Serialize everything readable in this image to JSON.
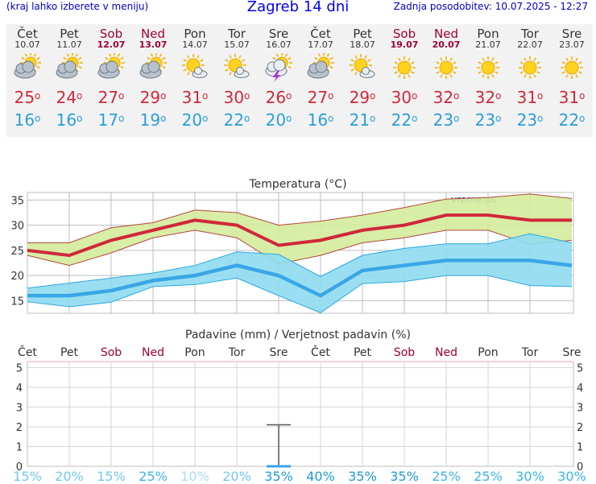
{
  "header": {
    "menu_hint": "(kraj lahko izberete v meniju)",
    "title": "Zagreb 14 dni",
    "updated": "Zadnja posodobitev: 10.07.2025 - 12:27"
  },
  "forecast": [
    {
      "day": "Čet",
      "date": "10.07",
      "weekend": false,
      "icon": "partly-cloudy-icon",
      "max": "25",
      "min": "16",
      "precip_prob": "15%"
    },
    {
      "day": "Pet",
      "date": "11.07",
      "weekend": false,
      "icon": "partly-cloudy-icon",
      "max": "24",
      "min": "16",
      "precip_prob": "20%"
    },
    {
      "day": "Sob",
      "date": "12.07",
      "weekend": true,
      "icon": "partly-cloudy-icon",
      "max": "27",
      "min": "17",
      "precip_prob": "15%"
    },
    {
      "day": "Ned",
      "date": "13.07",
      "weekend": true,
      "icon": "partly-cloudy-icon",
      "max": "29",
      "min": "19",
      "precip_prob": "25%"
    },
    {
      "day": "Pon",
      "date": "14.07",
      "weekend": false,
      "icon": "mostly-sunny-icon",
      "max": "31",
      "min": "20",
      "precip_prob": "10%"
    },
    {
      "day": "Tor",
      "date": "15.07",
      "weekend": false,
      "icon": "mostly-sunny-icon",
      "max": "30",
      "min": "22",
      "precip_prob": "20%"
    },
    {
      "day": "Sre",
      "date": "16.07",
      "weekend": false,
      "icon": "thunderstorm-icon",
      "max": "26",
      "min": "20",
      "precip_prob": "35%"
    },
    {
      "day": "Čet",
      "date": "17.07",
      "weekend": false,
      "icon": "partly-cloudy-icon",
      "max": "27",
      "min": "16",
      "precip_prob": "40%"
    },
    {
      "day": "Pet",
      "date": "18.07",
      "weekend": false,
      "icon": "mostly-sunny-icon",
      "max": "29",
      "min": "21",
      "precip_prob": "35%"
    },
    {
      "day": "Sob",
      "date": "19.07",
      "weekend": true,
      "icon": "sunny-icon",
      "max": "30",
      "min": "22",
      "precip_prob": "35%"
    },
    {
      "day": "Ned",
      "date": "20.07",
      "weekend": true,
      "icon": "sunny-icon",
      "max": "32",
      "min": "23",
      "precip_prob": "25%"
    },
    {
      "day": "Pon",
      "date": "21.07",
      "weekend": false,
      "icon": "sunny-icon",
      "max": "32",
      "min": "23",
      "precip_prob": "25%"
    },
    {
      "day": "Tor",
      "date": "22.07",
      "weekend": false,
      "icon": "sunny-icon",
      "max": "31",
      "min": "23",
      "precip_prob": "30%"
    },
    {
      "day": "Sre",
      "date": "23.07",
      "weekend": false,
      "icon": "sunny-icon",
      "max": "31",
      "min": "22",
      "precip_prob": "30%"
    }
  ],
  "colors": {
    "max": "#d0283a",
    "min": "#2b9ed6",
    "weekend": "#a00030",
    "max_band": "#d4ec9c",
    "min_band": "#8fdbef",
    "grid": "#bdbdbd"
  },
  "chart_data": [
    {
      "type": "line",
      "title": "Temperatura (°C)",
      "watermark": "vreme.us",
      "ylim": [
        12.5,
        36.5
      ],
      "yticks": [
        15,
        20,
        25,
        30,
        35
      ],
      "grid": true,
      "series": [
        {
          "name": "max",
          "values": [
            25,
            24,
            27,
            29,
            31,
            30,
            26,
            27,
            29,
            30,
            32,
            32,
            31,
            31
          ]
        },
        {
          "name": "max_band_high",
          "values": [
            26.5,
            26.5,
            29.5,
            30.5,
            33,
            32.5,
            30,
            30.8,
            32,
            33.5,
            35.2,
            35.5,
            36.2,
            35.3
          ]
        },
        {
          "name": "max_band_low",
          "values": [
            24,
            22,
            24.5,
            27.5,
            29,
            27.5,
            22.3,
            24,
            26.5,
            27.5,
            29,
            29,
            26.2,
            27
          ]
        },
        {
          "name": "min",
          "values": [
            16,
            16,
            17,
            19,
            20,
            22,
            20,
            16,
            21,
            22,
            23,
            23,
            23,
            22
          ]
        },
        {
          "name": "min_band_high",
          "values": [
            17.5,
            18.5,
            19.5,
            20.5,
            22,
            24.7,
            24.2,
            19.8,
            24,
            25.4,
            26.3,
            26.3,
            28.3,
            26.5
          ]
        },
        {
          "name": "min_band_low",
          "values": [
            14.8,
            13.8,
            14.7,
            17.8,
            18.2,
            19.5,
            16,
            12.6,
            18.4,
            18.8,
            20,
            20,
            18,
            17.8
          ]
        }
      ]
    },
    {
      "type": "bar",
      "title": "Padavine (mm) / Verjetnost padavin (%)",
      "ylim": [
        0,
        5.3
      ],
      "yticks": [
        0,
        1,
        2,
        3,
        4,
        5
      ],
      "grid": true,
      "values": [
        0,
        0,
        0,
        0,
        0,
        0,
        0,
        0,
        0,
        0,
        0,
        0,
        0,
        0
      ],
      "error_range": [
        {
          "index": 6,
          "low": 0,
          "high": 2.1
        }
      ]
    }
  ]
}
